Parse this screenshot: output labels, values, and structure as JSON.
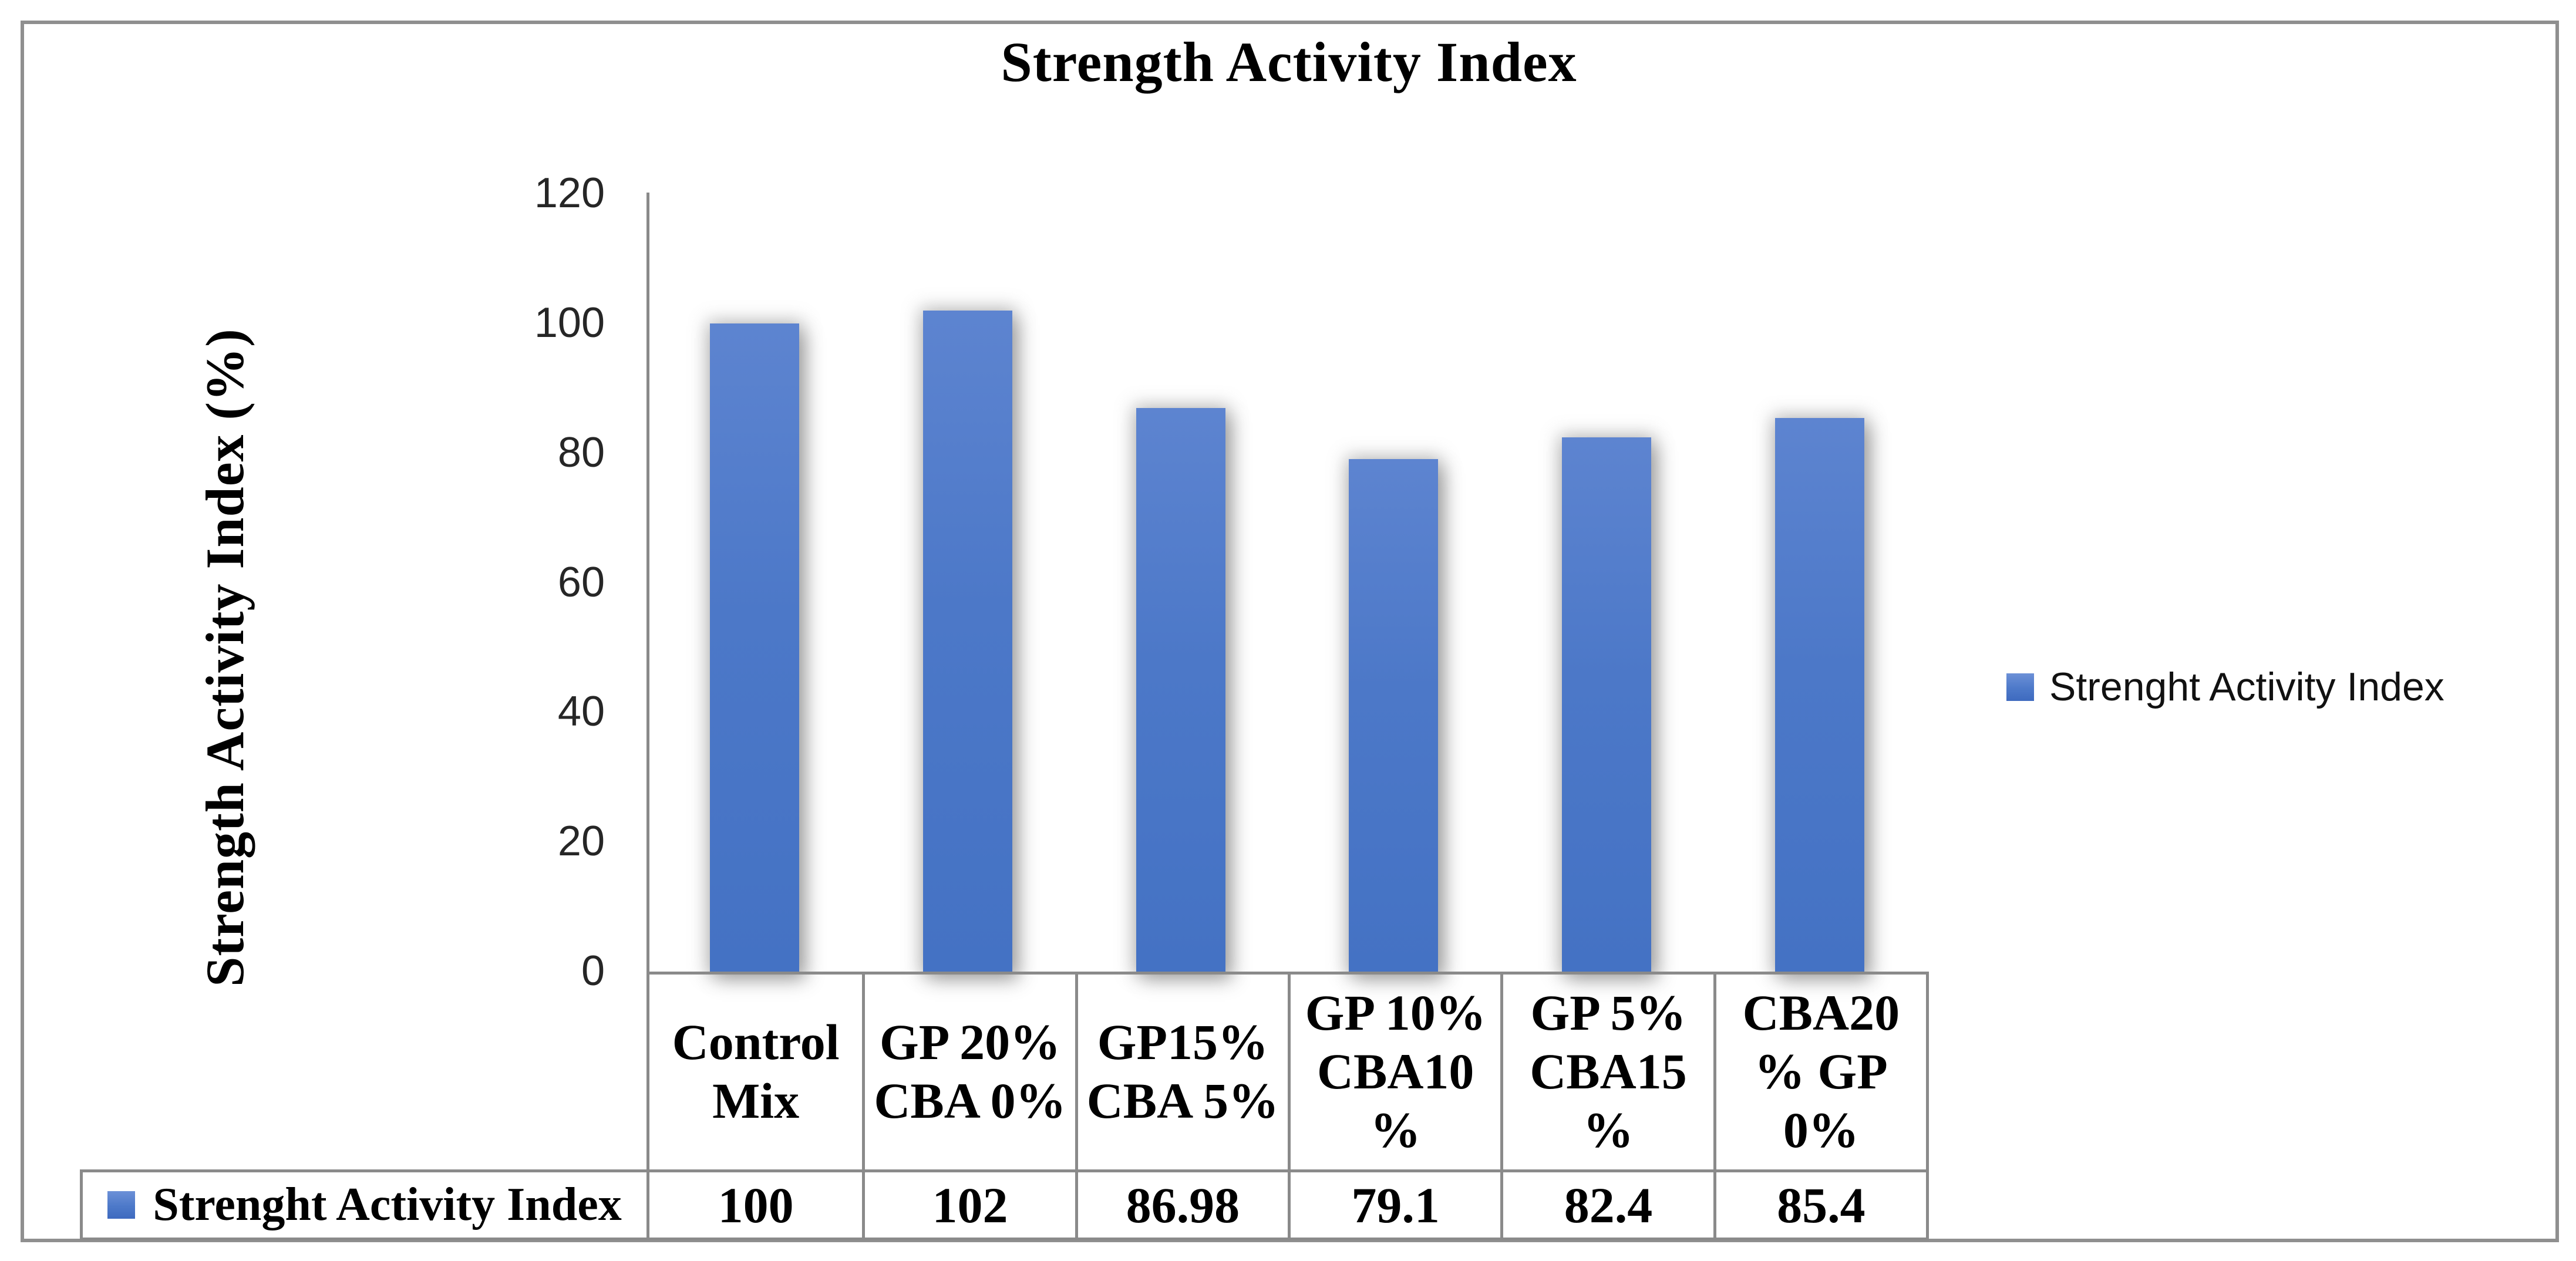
{
  "figure": {
    "title": "Strength Activity Index",
    "y_axis_title": "Strength Activity Index (%)"
  },
  "legend": {
    "label": "Strenght Activity Index",
    "marker_color": "#4472C4"
  },
  "chart_data": {
    "type": "bar",
    "title": "Strength Activity Index",
    "ylabel": "Strength Activity Index (%)",
    "xlabel": "",
    "ylim": [
      0,
      120
    ],
    "yticks": [
      0,
      20,
      40,
      60,
      80,
      100,
      120
    ],
    "grid": false,
    "legend_position": "right",
    "bar_color": "#4472C4",
    "data_table_shown": true,
    "categories": [
      "Control Mix",
      "GP 20% CBA 0%",
      "GP15% CBA 5%",
      "GP 10% CBA10 %",
      "GP 5% CBA15 %",
      "CBA20 % GP 0%"
    ],
    "category_display_lines": [
      [
        "Control",
        "Mix"
      ],
      [
        "GP 20%",
        "CBA 0%"
      ],
      [
        "GP15%",
        "CBA 5%"
      ],
      [
        "GP 10%",
        "CBA10",
        "%"
      ],
      [
        "GP 5%",
        "CBA15",
        "%"
      ],
      [
        "CBA20",
        "% GP",
        "0%"
      ]
    ],
    "series": [
      {
        "name": "Strenght Activity Index",
        "values": [
          100,
          102,
          86.98,
          79.1,
          82.4,
          85.4
        ],
        "value_labels": [
          "100",
          "102",
          "86.98",
          "79.1",
          "82.4",
          "85.4"
        ]
      }
    ]
  }
}
